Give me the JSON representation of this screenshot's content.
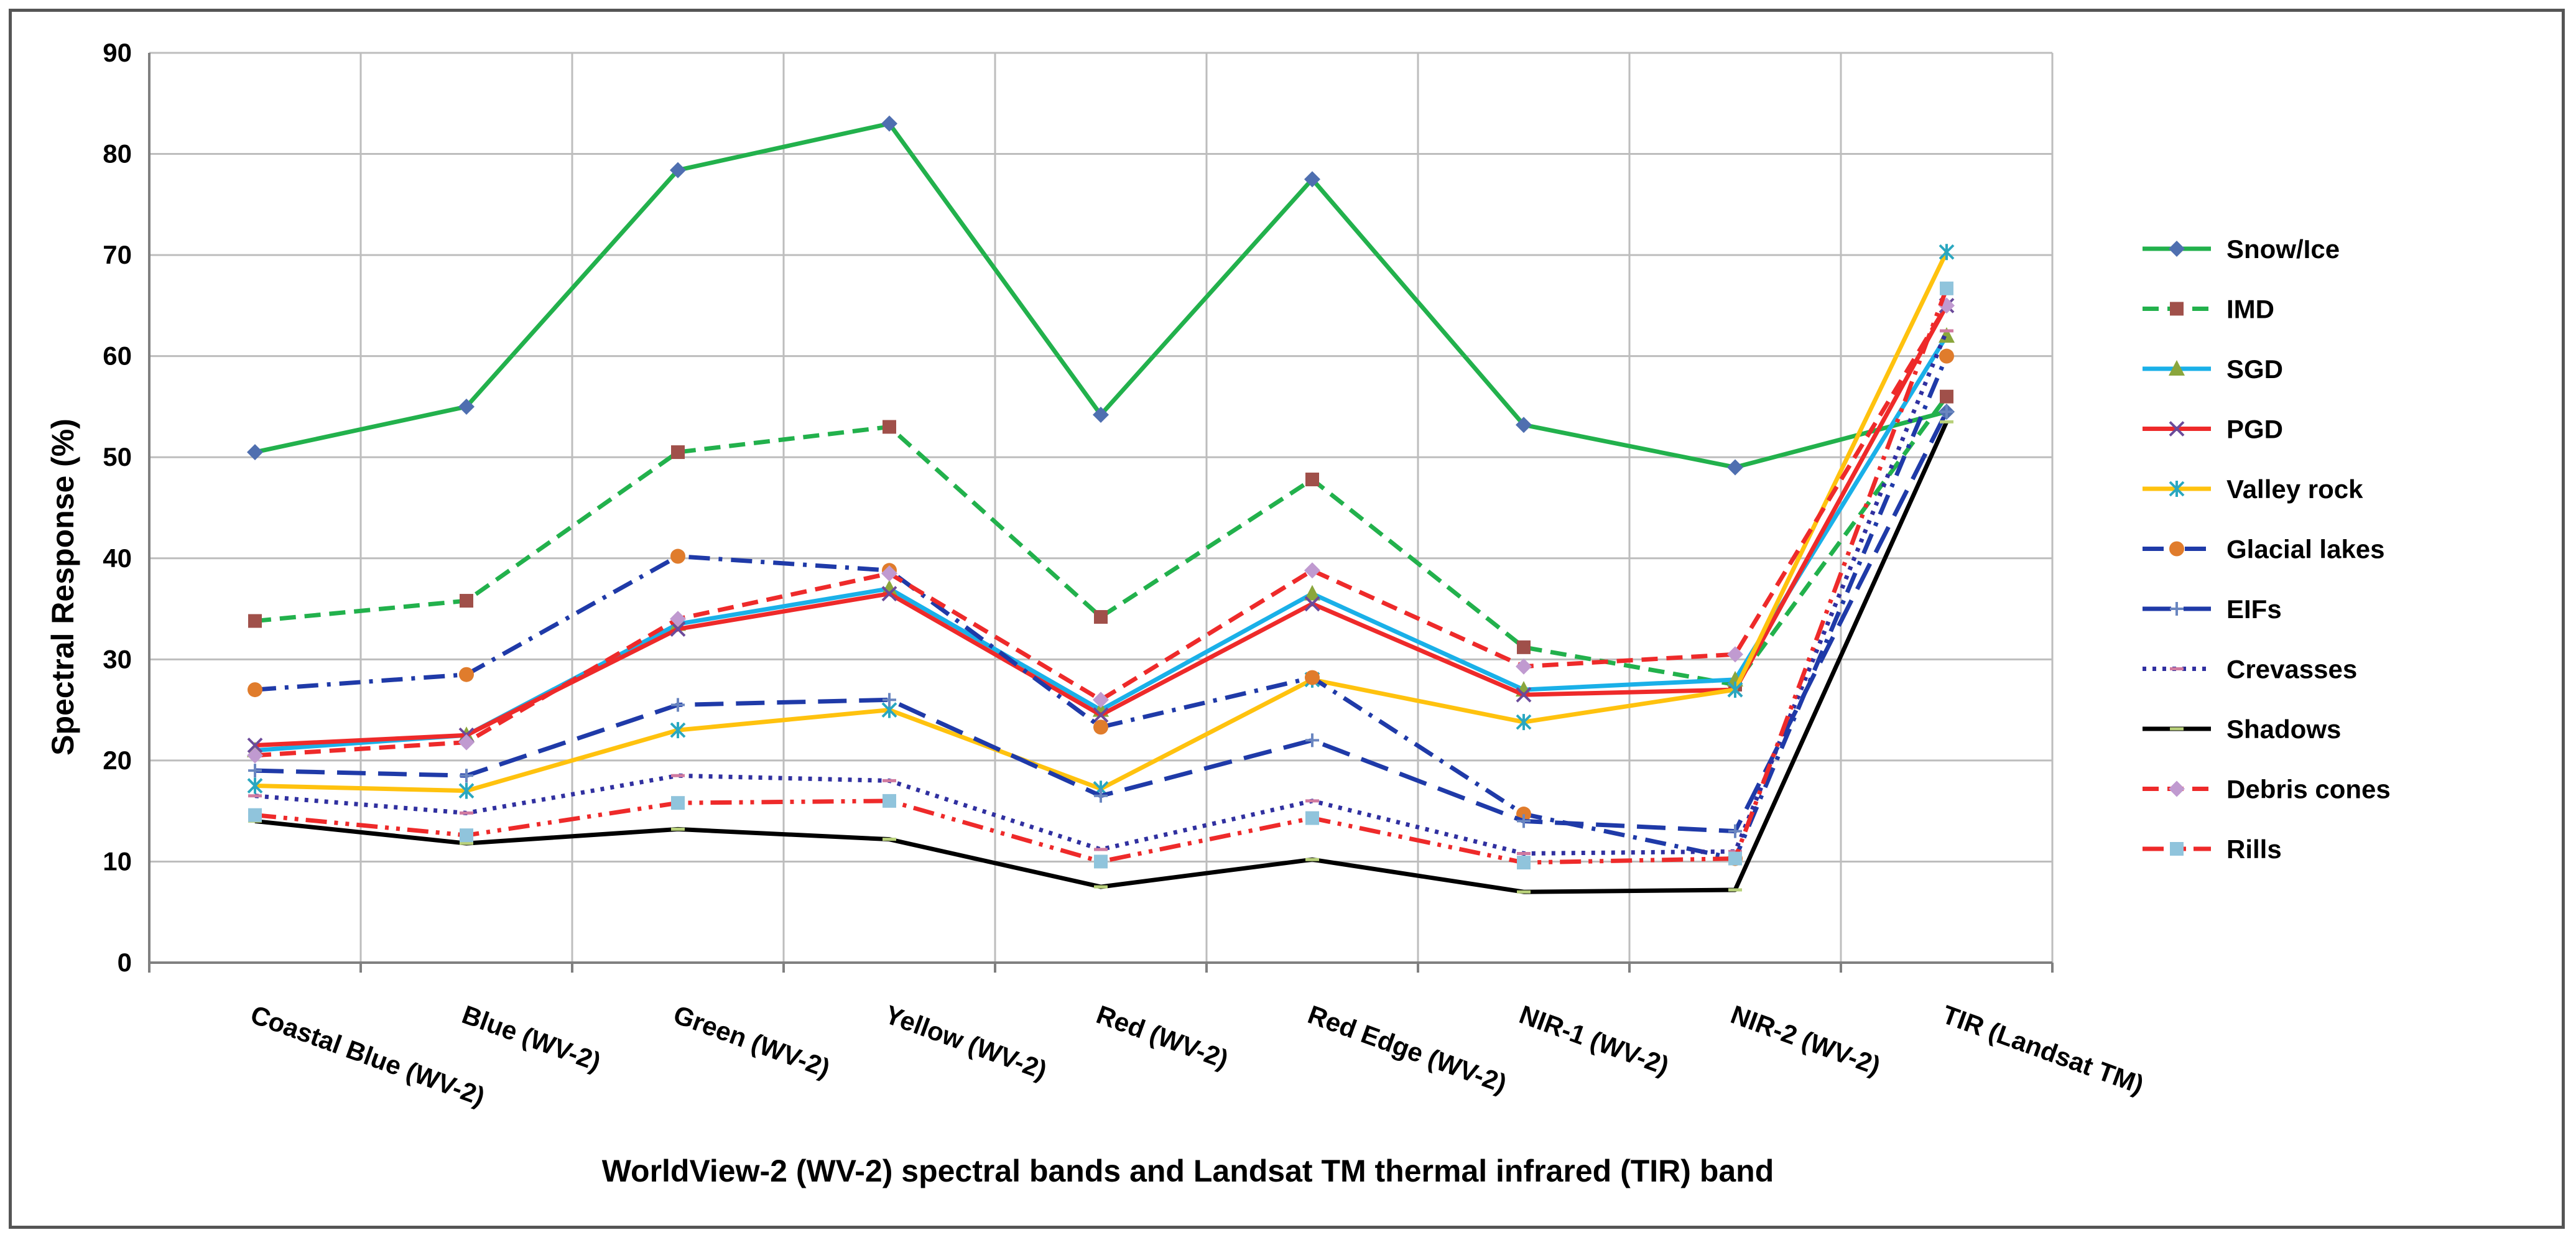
{
  "chart_data": {
    "type": "line",
    "title": "",
    "xlabel": "WorldView-2 (WV-2) spectral bands and Landsat TM thermal infrared (TIR) band",
    "ylabel": "Spectral Response (%)",
    "ylim": [
      0,
      90
    ],
    "yticks": [
      "0",
      "10",
      "20",
      "30",
      "40",
      "50",
      "60",
      "70",
      "80",
      "90"
    ],
    "grid": true,
    "legend_position": "right",
    "categories": [
      "Coastal Blue (WV-2)",
      "Blue (WV-2)",
      "Green (WV-2)",
      "Yellow (WV-2)",
      "Red (WV-2)",
      "Red Edge (WV-2)",
      "NIR-1 (WV-2)",
      "NIR-2 (WV-2)",
      "TIR (Landsat TM)"
    ],
    "series": [
      {
        "name": "Snow/Ice",
        "color": "#22b14c",
        "dash": "solid",
        "marker": "diamond",
        "marker_color": "#4f6fb0",
        "values": [
          50.5,
          55,
          78.4,
          83,
          54.2,
          77.5,
          53.2,
          49,
          54.5
        ]
      },
      {
        "name": "IMD",
        "color": "#22b14c",
        "dash": "dash",
        "marker": "square",
        "marker_color": "#a0504a",
        "values": [
          33.8,
          35.8,
          50.5,
          53,
          34.2,
          47.8,
          31.2,
          27.5,
          56
        ]
      },
      {
        "name": "SGD",
        "color": "#1ab0e8",
        "dash": "solid",
        "marker": "triangle",
        "marker_color": "#8aa63c",
        "values": [
          21,
          22.5,
          33.5,
          37,
          25,
          36.5,
          27,
          28,
          62
        ]
      },
      {
        "name": "PGD",
        "color": "#ee2a2a",
        "dash": "solid",
        "marker": "x",
        "marker_color": "#6a4a9a",
        "values": [
          21.5,
          22.5,
          33,
          36.5,
          24.5,
          35.5,
          26.5,
          27,
          65
        ]
      },
      {
        "name": "Valley rock",
        "color": "#ffc20e",
        "dash": "solid",
        "marker": "star",
        "marker_color": "#2aa7c0",
        "values": [
          17.5,
          17,
          23,
          25,
          17.2,
          28,
          23.8,
          27,
          70.3
        ]
      },
      {
        "name": "Glacial lakes",
        "color": "#1f3aa8",
        "dash": "dashdot",
        "marker": "circle",
        "marker_color": "#e07c2c",
        "values": [
          27,
          28.5,
          40.2,
          38.8,
          23.3,
          28.2,
          14.7,
          10.3,
          60
        ]
      },
      {
        "name": "EIFs",
        "color": "#1f3aa8",
        "dash": "longdash",
        "marker": "plus",
        "marker_color": "#6a86c0",
        "values": [
          19,
          18.5,
          25.5,
          26,
          16.5,
          22,
          14,
          13,
          54.5
        ]
      },
      {
        "name": "Crevasses",
        "color": "#3030a0",
        "dash": "dot",
        "marker": "dash",
        "marker_color": "#d07aa0",
        "values": [
          16.5,
          14.8,
          18.5,
          18,
          11.2,
          16,
          10.8,
          11,
          62.5
        ]
      },
      {
        "name": "Shadows",
        "color": "#000000",
        "dash": "solid",
        "marker": "dash",
        "marker_color": "#b8d07a",
        "values": [
          14,
          11.8,
          13.2,
          12.2,
          7.5,
          10.2,
          7,
          7.2,
          53.5
        ]
      },
      {
        "name": "Debris cones",
        "color": "#ee2a2a",
        "dash": "dash",
        "marker": "diamond",
        "marker_color": "#c09ad0",
        "values": [
          20.5,
          21.8,
          34,
          38.5,
          26,
          38.8,
          29.3,
          30.5,
          65
        ]
      },
      {
        "name": "Rills",
        "color": "#ee2a2a",
        "dash": "dashdotdot",
        "marker": "square",
        "marker_color": "#90c4dc",
        "values": [
          14.6,
          12.6,
          15.8,
          16,
          10,
          14.3,
          9.9,
          10.3,
          66.7
        ]
      }
    ]
  }
}
